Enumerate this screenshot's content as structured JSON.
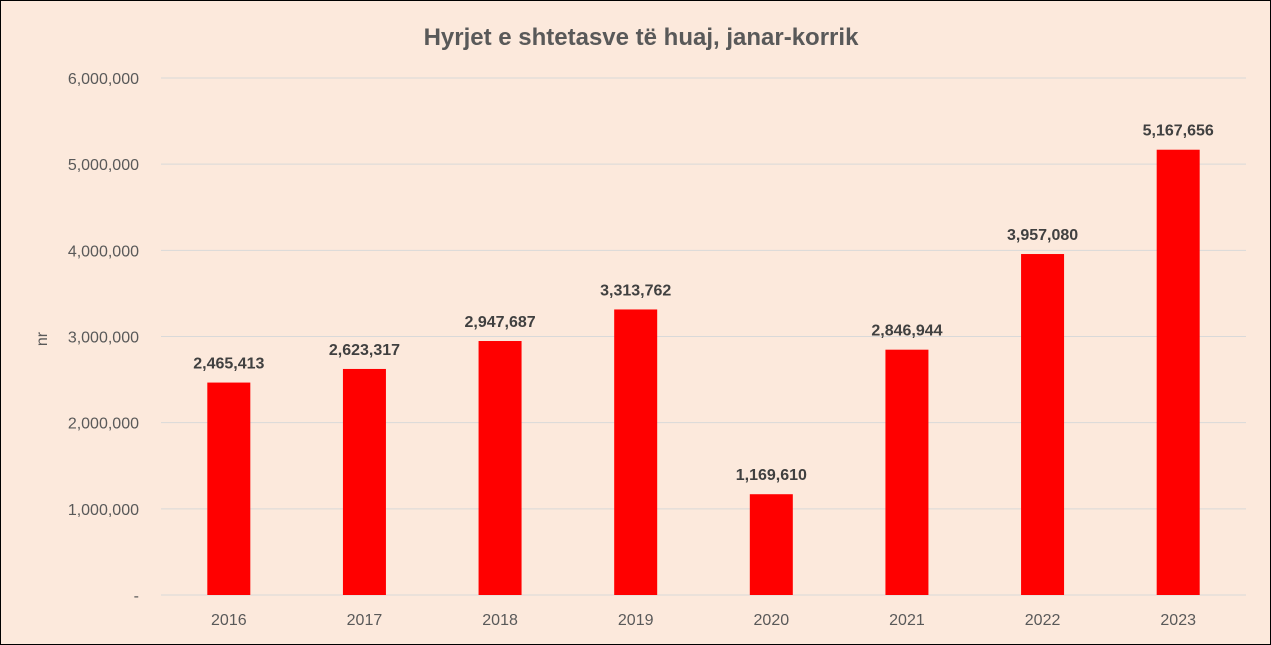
{
  "chart_data": {
    "type": "bar",
    "title": "Hyrjet e shtetasve të huaj, janar-korrik",
    "xlabel": "",
    "ylabel": "nr",
    "categories": [
      "2016",
      "2017",
      "2018",
      "2019",
      "2020",
      "2021",
      "2022",
      "2023"
    ],
    "values": [
      2465413,
      2623317,
      2947687,
      3313762,
      1169610,
      2846944,
      3957080,
      5167656
    ],
    "data_labels": [
      "2,465,413",
      "2,623,317",
      "2,947,687",
      "3,313,762",
      "1,169,610",
      "2,846,944",
      "3,957,080",
      "5,167,656"
    ],
    "ylim": [
      0,
      6000000
    ],
    "yticks": [
      0,
      1000000,
      2000000,
      3000000,
      4000000,
      5000000,
      6000000
    ],
    "ytick_labels": [
      "-",
      "1,000,000",
      "2,000,000",
      "3,000,000",
      "4,000,000",
      "5,000,000",
      "6,000,000"
    ],
    "grid": true,
    "legend": "none",
    "colors": {
      "bar": "#ff0000",
      "background": "#fce9dc",
      "gridline": "#d9d9d9",
      "text": "#595959",
      "data_label": "#404040"
    }
  }
}
